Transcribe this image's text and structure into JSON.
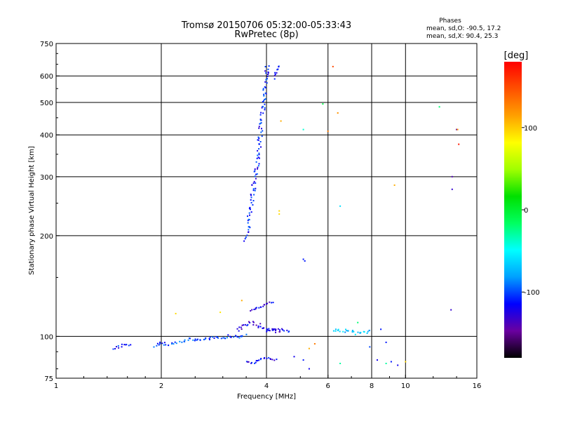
{
  "chart_data": {
    "type": "scatter",
    "title": "Tromsø 20150706 05:32:00-05:33:43",
    "subtitle": "RwPretec (8p)",
    "xlabel": "Frequency [MHz]",
    "ylabel": "Stationary phase Virtual Height [km]",
    "x_scale": "log",
    "y_scale": "log",
    "xlim": [
      1,
      16
    ],
    "ylim": [
      75,
      750
    ],
    "x_ticks": [
      {
        "value": 1,
        "label": "1"
      },
      {
        "value": 2,
        "label": "2"
      },
      {
        "value": 4,
        "label": "4"
      },
      {
        "value": 6,
        "label": "6"
      },
      {
        "value": 8,
        "label": "8"
      },
      {
        "value": 10,
        "label": "10"
      },
      {
        "value": 16,
        "label": "16"
      }
    ],
    "y_ticks": [
      {
        "value": 75,
        "label": "75"
      },
      {
        "value": 100,
        "label": "100"
      },
      {
        "value": 200,
        "label": "200"
      },
      {
        "value": 300,
        "label": "300"
      },
      {
        "value": 400,
        "label": "400"
      },
      {
        "value": 500,
        "label": "500"
      },
      {
        "value": 600,
        "label": "600"
      },
      {
        "value": 750,
        "label": "750"
      }
    ],
    "grid_x": [
      2,
      4,
      6,
      8,
      10
    ],
    "grid_y": [
      100,
      200,
      300,
      400,
      500,
      600
    ],
    "grid": true,
    "phases": {
      "header": "Phases",
      "line_o": "mean, sd,O: -90.5, 17.2",
      "line_x": "mean, sd,X:  90.4, 25.3"
    },
    "colorbar": {
      "label": "[deg]",
      "range": [
        -180,
        180
      ],
      "ticks": [
        {
          "value": 100,
          "label": "100"
        },
        {
          "value": 0,
          "label": "0"
        },
        {
          "value": -100,
          "label": "-100"
        }
      ],
      "stops": [
        "#000000",
        "#6a00a0",
        "#0000ff",
        "#00a0ff",
        "#00ffff",
        "#00ff60",
        "#00e000",
        "#a0ff00",
        "#ffff00",
        "#ffa000",
        "#ff5000",
        "#ff0000"
      ]
    },
    "traces": [
      {
        "x": [
          3.5,
          3.55,
          3.6,
          3.65,
          3.7,
          3.75,
          3.8,
          3.85,
          3.9,
          3.95,
          4.0,
          4.02
        ],
        "y": [
          195,
          215,
          240,
          265,
          290,
          320,
          360,
          410,
          470,
          540,
          610,
          650
        ],
        "phase": -110,
        "spread": 3.0
      },
      {
        "x": [
          4.2,
          4.25,
          4.3,
          4.35
        ],
        "y": [
          590,
          610,
          630,
          650
        ],
        "phase": -115,
        "spread": 2.0
      },
      {
        "x": [
          1.45,
          1.5,
          1.55,
          1.6,
          1.65
        ],
        "y": [
          92,
          93,
          94,
          94,
          95
        ],
        "phase": -110,
        "spread": 1.5
      },
      {
        "x": [
          1.9,
          2.0,
          2.1,
          2.2,
          2.3,
          2.5,
          2.7,
          2.9,
          3.1,
          3.3,
          3.5
        ],
        "y": [
          94,
          95,
          95,
          96,
          97,
          98,
          98,
          99,
          100,
          100,
          101
        ],
        "phase": -100,
        "spread": 2.5
      },
      {
        "x": [
          3.3,
          3.45,
          3.6,
          3.8,
          4.0,
          4.2,
          4.4
        ],
        "y": [
          104,
          108,
          110,
          108,
          105,
          104,
          103
        ],
        "phase": -125,
        "spread": 2.5
      },
      {
        "x": [
          4.0,
          4.1,
          4.2,
          4.35,
          4.5,
          4.7
        ],
        "y": [
          104,
          105,
          104,
          105,
          104,
          104
        ],
        "phase": -120,
        "spread": 2.0
      },
      {
        "x": [
          6.2,
          6.5,
          6.8,
          7.0,
          7.3,
          7.6,
          7.8,
          8.0
        ],
        "y": [
          104,
          105,
          103,
          104,
          102,
          102,
          103,
          103
        ],
        "phase": -70,
        "spread": 2.5
      },
      {
        "x": [
          3.6,
          3.8,
          4.0,
          4.2
        ],
        "y": [
          120,
          122,
          125,
          127
        ],
        "phase": -120,
        "spread": 1.5
      },
      {
        "x": [
          3.5,
          3.65,
          3.8,
          4.0,
          4.3
        ],
        "y": [
          84,
          83,
          85,
          86,
          85
        ],
        "phase": -115,
        "spread": 1.2
      }
    ],
    "points": [
      {
        "x": 6.2,
        "y": 640,
        "phase": 150
      },
      {
        "x": 5.8,
        "y": 495,
        "phase": -10
      },
      {
        "x": 6.4,
        "y": 465,
        "phase": 120
      },
      {
        "x": 4.4,
        "y": 440,
        "phase": 110
      },
      {
        "x": 5.1,
        "y": 415,
        "phase": -40
      },
      {
        "x": 6.0,
        "y": 410,
        "phase": 130
      },
      {
        "x": 12.5,
        "y": 485,
        "phase": -20
      },
      {
        "x": 14.0,
        "y": 415,
        "phase": -150
      },
      {
        "x": 14.1,
        "y": 415,
        "phase": 120
      },
      {
        "x": 14.2,
        "y": 375,
        "phase": 170
      },
      {
        "x": 13.6,
        "y": 300,
        "phase": -140
      },
      {
        "x": 13.6,
        "y": 275,
        "phase": -130
      },
      {
        "x": 9.3,
        "y": 283,
        "phase": 110
      },
      {
        "x": 6.5,
        "y": 245,
        "phase": -60
      },
      {
        "x": 4.35,
        "y": 232,
        "phase": 95
      },
      {
        "x": 4.35,
        "y": 237,
        "phase": 95
      },
      {
        "x": 5.1,
        "y": 170,
        "phase": -110
      },
      {
        "x": 5.15,
        "y": 168,
        "phase": -110
      },
      {
        "x": 2.2,
        "y": 117,
        "phase": 95
      },
      {
        "x": 2.95,
        "y": 118,
        "phase": 90
      },
      {
        "x": 3.4,
        "y": 128,
        "phase": 110
      },
      {
        "x": 13.5,
        "y": 120,
        "phase": -130
      },
      {
        "x": 5.5,
        "y": 95,
        "phase": 130
      },
      {
        "x": 5.3,
        "y": 92,
        "phase": 110
      },
      {
        "x": 4.8,
        "y": 87,
        "phase": -120
      },
      {
        "x": 5.1,
        "y": 85,
        "phase": -110
      },
      {
        "x": 5.3,
        "y": 80,
        "phase": -120
      },
      {
        "x": 6.5,
        "y": 83,
        "phase": -30
      },
      {
        "x": 8.3,
        "y": 85,
        "phase": -120
      },
      {
        "x": 8.8,
        "y": 83,
        "phase": -30
      },
      {
        "x": 9.1,
        "y": 84,
        "phase": -110
      },
      {
        "x": 9.5,
        "y": 82,
        "phase": -120
      },
      {
        "x": 10.0,
        "y": 84,
        "phase": 95
      },
      {
        "x": 8.8,
        "y": 96,
        "phase": -110
      },
      {
        "x": 7.9,
        "y": 93,
        "phase": -100
      },
      {
        "x": 8.5,
        "y": 105,
        "phase": -110
      },
      {
        "x": 7.3,
        "y": 110,
        "phase": -20
      }
    ]
  }
}
